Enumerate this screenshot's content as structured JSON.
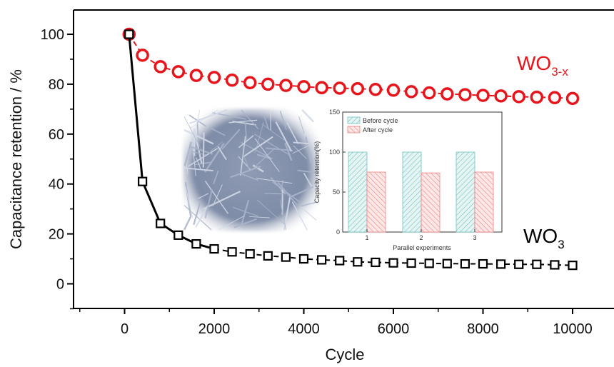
{
  "chart_data": [
    {
      "type": "scatter",
      "xlabel": "Cycle",
      "ylabel": "Capacitance retention / %",
      "xlim": [
        -1000,
        11300
      ],
      "ylim": [
        -10,
        110
      ],
      "x_ticks": [
        0,
        2000,
        4000,
        6000,
        8000,
        10000
      ],
      "x_tick_labels": [
        "0",
        "2000",
        "4000",
        "6000",
        "8000",
        "10000"
      ],
      "y_ticks": [
        0,
        20,
        40,
        60,
        80,
        100
      ],
      "y_tick_labels": [
        "0",
        "20",
        "40",
        "60",
        "80",
        "100"
      ],
      "grid": false,
      "series": [
        {
          "name": "WO3-x",
          "label_main": "WO",
          "label_sub": "3-x",
          "color": "#e8141b",
          "marker": "circle",
          "line": "dashed",
          "x": [
            100,
            400,
            800,
            1200,
            1600,
            2000,
            2400,
            2800,
            3200,
            3600,
            4000,
            4400,
            4800,
            5200,
            5600,
            6000,
            6400,
            6800,
            7200,
            7600,
            8000,
            8400,
            8800,
            9200,
            9600,
            10000
          ],
          "values": [
            100,
            91.6,
            87,
            85,
            83.5,
            82.7,
            81.6,
            80.6,
            80,
            79.5,
            79,
            78.6,
            78.4,
            78.2,
            77.9,
            77.6,
            77,
            76.5,
            76.1,
            75.8,
            75.5,
            75.3,
            75,
            74.8,
            74.6,
            74.3
          ]
        },
        {
          "name": "WO3",
          "label_main": "WO",
          "label_sub": "3",
          "color": "#000000",
          "marker": "square",
          "line": "solid-then-dashed",
          "x": [
            100,
            400,
            800,
            1200,
            1600,
            2000,
            2400,
            2800,
            3200,
            3600,
            4000,
            4400,
            4800,
            5200,
            5600,
            6000,
            6400,
            6800,
            7200,
            7600,
            8000,
            8400,
            8800,
            9200,
            9600,
            10000
          ],
          "values": [
            100,
            41,
            24.2,
            19.5,
            16,
            14,
            12.8,
            12,
            11.2,
            10.7,
            10,
            9.6,
            9.3,
            8.8,
            8.6,
            8.4,
            8.3,
            8.2,
            8.1,
            8,
            8,
            7.9,
            7.8,
            7.8,
            7.6,
            7.4
          ]
        }
      ]
    },
    {
      "type": "bar",
      "inset": true,
      "xlabel": "Parallel experiments",
      "ylabel": "Capacity retention(%)",
      "categories": [
        "1",
        "2",
        "3"
      ],
      "ylim": [
        0,
        150
      ],
      "y_ticks": [
        0,
        50,
        100,
        150
      ],
      "y_tick_labels": [
        "0",
        "50",
        "100",
        "150"
      ],
      "legend_position": "top-left",
      "series": [
        {
          "name": "Before cycle",
          "color": "#6cc3c0",
          "values": [
            100,
            100,
            100
          ]
        },
        {
          "name": "After cycle",
          "color": "#f08080",
          "values": [
            75,
            74,
            75
          ]
        }
      ]
    }
  ],
  "image_inset": {
    "description_icon": "sem-nanowire-micrograph-icon"
  }
}
